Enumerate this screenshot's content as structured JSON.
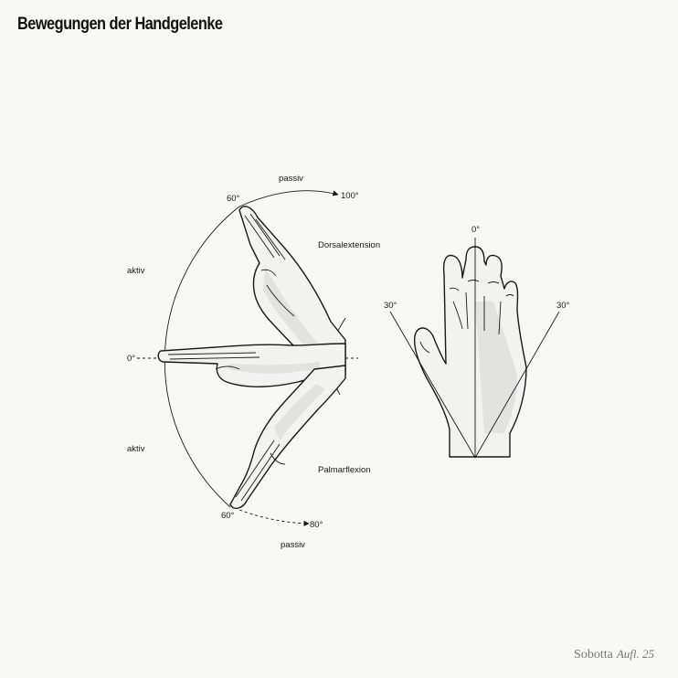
{
  "title": "Bewegungen der Handgelenke",
  "labels": {
    "passiv_top": "passiv",
    "passiv_bottom": "passiv",
    "deg_60_top": "60°",
    "deg_100": "100°",
    "deg_60_bottom": "60°",
    "deg_80": "80°",
    "aktiv_top": "aktiv",
    "aktiv_bottom": "aktiv",
    "deg_0_left": "0°",
    "dorsalextension": "Dorsalextension",
    "palmarflexion": "Palmarflexion",
    "deg_0_right": "0°",
    "deg_30_left": "30°",
    "deg_30_right": "30°"
  },
  "footer": {
    "brand": "Sobotta",
    "edition": "Aufl. 25"
  }
}
